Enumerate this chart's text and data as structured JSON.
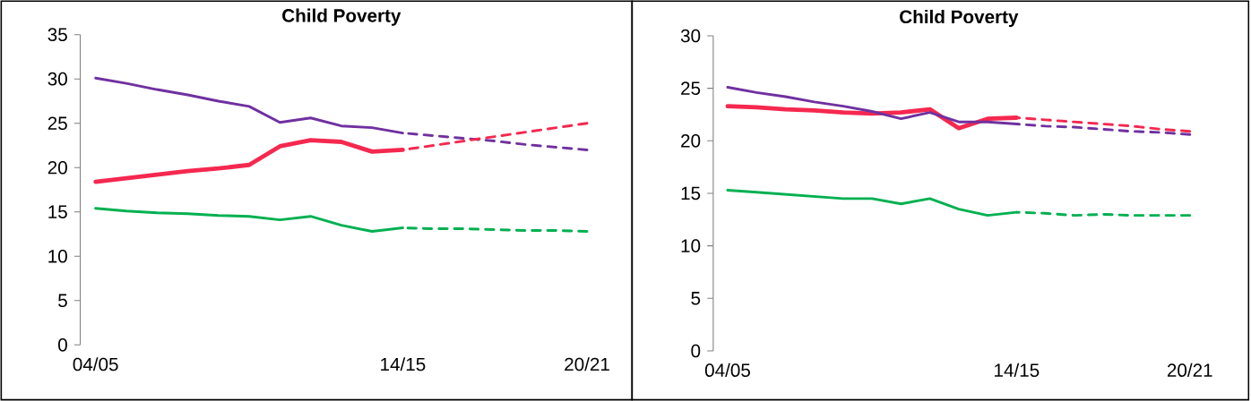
{
  "chart_data": [
    {
      "type": "line",
      "title": "Child Poverty",
      "categories": [
        "04/05",
        null,
        null,
        null,
        null,
        null,
        null,
        null,
        null,
        null,
        "14/15",
        null,
        null,
        null,
        null,
        null,
        "20/21"
      ],
      "ylim": [
        0,
        35
      ],
      "yticks": [
        0,
        5,
        10,
        15,
        20,
        25,
        30,
        35
      ],
      "series": [
        {
          "color": "#7030a0",
          "line_style": "solid",
          "values": [
            30.1,
            29.5,
            28.8,
            28.2,
            27.5,
            26.9,
            25.1,
            25.6,
            24.7,
            24.5,
            23.9,
            null,
            null,
            null,
            null,
            null,
            null
          ]
        },
        {
          "color": "#f5284f",
          "line_style": "solid",
          "values": [
            18.4,
            18.8,
            19.2,
            19.6,
            19.9,
            20.3,
            22.4,
            23.1,
            22.9,
            21.8,
            22.0,
            null,
            null,
            null,
            null,
            null,
            null
          ]
        },
        {
          "color": "#00b050",
          "line_style": "solid",
          "values": [
            15.4,
            15.1,
            14.9,
            14.8,
            14.6,
            14.5,
            14.1,
            14.5,
            13.5,
            12.8,
            13.2,
            null,
            null,
            null,
            null,
            null,
            null
          ]
        },
        {
          "color": "#7030a0",
          "line_style": "dashed",
          "values": [
            null,
            null,
            null,
            null,
            null,
            null,
            null,
            null,
            null,
            null,
            23.9,
            23.6,
            23.3,
            23.0,
            22.6,
            22.3,
            22.0
          ]
        },
        {
          "color": "#f5284f",
          "line_style": "dashed",
          "values": [
            null,
            null,
            null,
            null,
            null,
            null,
            null,
            null,
            null,
            null,
            22.0,
            22.5,
            23.0,
            23.5,
            24.0,
            24.5,
            25.0
          ]
        },
        {
          "color": "#00b050",
          "line_style": "dashed",
          "values": [
            null,
            null,
            null,
            null,
            null,
            null,
            null,
            null,
            null,
            null,
            13.2,
            13.1,
            13.1,
            13.0,
            12.9,
            12.9,
            12.8
          ]
        }
      ]
    },
    {
      "type": "line",
      "title": "Child Poverty",
      "categories": [
        "04/05",
        null,
        null,
        null,
        null,
        null,
        null,
        null,
        null,
        null,
        "14/15",
        null,
        null,
        null,
        null,
        null,
        "20/21"
      ],
      "ylim": [
        0,
        30
      ],
      "yticks": [
        0,
        5,
        10,
        15,
        20,
        25,
        30
      ],
      "series": [
        {
          "color": "#f5284f",
          "line_style": "solid",
          "values": [
            23.3,
            23.2,
            23.0,
            22.9,
            22.7,
            22.6,
            22.7,
            23.0,
            21.2,
            22.1,
            22.2,
            null,
            null,
            null,
            null,
            null,
            null
          ]
        },
        {
          "color": "#7030a0",
          "line_style": "solid",
          "values": [
            25.1,
            24.6,
            24.2,
            23.7,
            23.3,
            22.8,
            22.1,
            22.7,
            21.8,
            21.8,
            21.6,
            null,
            null,
            null,
            null,
            null,
            null
          ]
        },
        {
          "color": "#00b050",
          "line_style": "solid",
          "values": [
            15.3,
            15.1,
            14.9,
            14.7,
            14.5,
            14.5,
            14.0,
            14.5,
            13.5,
            12.9,
            13.2,
            null,
            null,
            null,
            null,
            null,
            null
          ]
        },
        {
          "color": "#f5284f",
          "line_style": "dashed",
          "values": [
            null,
            null,
            null,
            null,
            null,
            null,
            null,
            null,
            null,
            null,
            22.2,
            22.0,
            21.8,
            21.6,
            21.4,
            21.1,
            20.9
          ]
        },
        {
          "color": "#7030a0",
          "line_style": "dashed",
          "values": [
            null,
            null,
            null,
            null,
            null,
            null,
            null,
            null,
            null,
            null,
            21.6,
            21.4,
            21.3,
            21.1,
            20.9,
            20.8,
            20.6
          ]
        },
        {
          "color": "#00b050",
          "line_style": "dashed",
          "values": [
            null,
            null,
            null,
            null,
            null,
            null,
            null,
            null,
            null,
            null,
            13.2,
            13.1,
            12.9,
            13.0,
            12.9,
            12.9,
            12.9
          ]
        }
      ]
    }
  ]
}
